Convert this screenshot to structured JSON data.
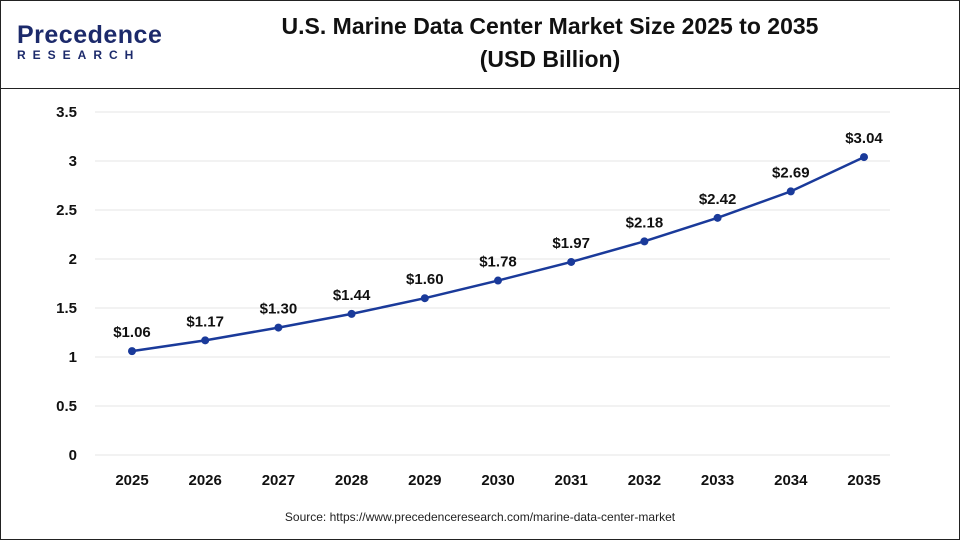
{
  "header": {
    "logo_text": "Precedence RESEARCH",
    "logo_top": "Precedence",
    "logo_bottom": "RESEARCH",
    "title_line1": "U.S. Marine Data Center Market Size 2025 to 2035",
    "title_line2": "(USD Billion)"
  },
  "source": "Source: https://www.precedenceresearch.com/marine-data-center-market",
  "colors": {
    "line": "#1a3a9a",
    "grid": "#e6e6e6"
  },
  "chart_data": {
    "type": "line",
    "title": "U.S. Marine Data Center Market Size 2025 to 2035 (USD Billion)",
    "categories": [
      "2025",
      "2026",
      "2027",
      "2028",
      "2029",
      "2030",
      "2031",
      "2032",
      "2033",
      "2034",
      "2035"
    ],
    "values": [
      1.06,
      1.17,
      1.3,
      1.44,
      1.6,
      1.78,
      1.97,
      2.18,
      2.42,
      2.69,
      3.04
    ],
    "data_labels": [
      "$1.06",
      "$1.17",
      "$1.30",
      "$1.44",
      "$1.60",
      "$1.78",
      "$1.97",
      "$2.18",
      "$2.42",
      "$2.69",
      "$3.04"
    ],
    "yticks": [
      "0",
      "0.5",
      "1",
      "1.5",
      "2",
      "2.5",
      "3",
      "3.5"
    ],
    "ylim": [
      0,
      3.5
    ],
    "grid": true,
    "legend": "none"
  }
}
